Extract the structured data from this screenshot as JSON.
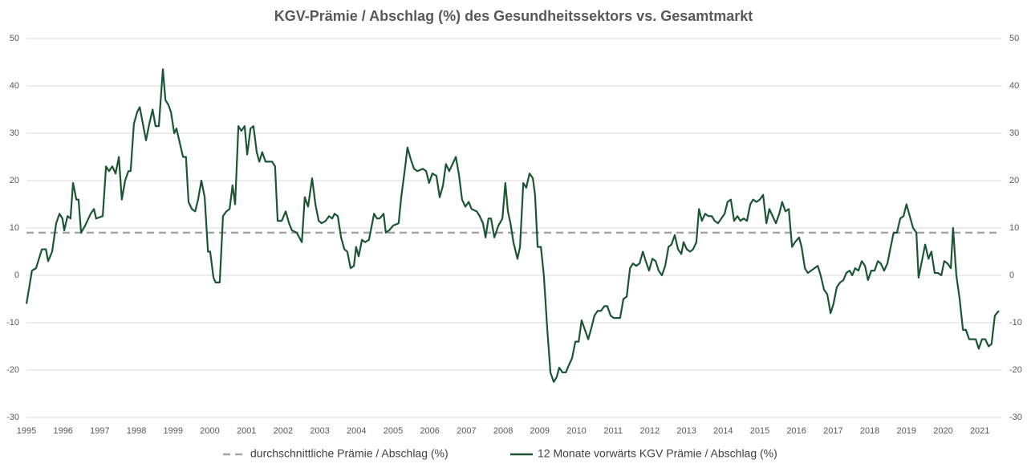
{
  "chart_data": {
    "type": "line",
    "title": "KGV-Prämie / Abschlag (%) des Gesundheitssektors vs. Gesamtmarkt",
    "xlim": [
      1995,
      2021.6
    ],
    "xticks": [
      1995,
      1996,
      1997,
      1998,
      1999,
      2000,
      2001,
      2002,
      2003,
      2004,
      2005,
      2006,
      2007,
      2008,
      2009,
      2010,
      2011,
      2012,
      2013,
      2014,
      2015,
      2016,
      2017,
      2018,
      2019,
      2020,
      2021
    ],
    "ylim": [
      -30,
      50
    ],
    "yticks": [
      -30,
      -20,
      -10,
      0,
      10,
      20,
      30,
      40,
      50
    ],
    "y2lim": [
      -30,
      50
    ],
    "y2ticks": [
      -30,
      -20,
      -10,
      0,
      10,
      20,
      30,
      40,
      50
    ],
    "grid": true,
    "legend": "bottom",
    "series": [
      {
        "name": "durchschnittliche Prämie / Abschlag (%)",
        "color": "#a6a6a6",
        "dash": true,
        "x": [
          1995,
          2021.52
        ],
        "values": [
          9,
          9
        ]
      },
      {
        "name": "12 Monate vorwärts KGV Prämie / Abschlag (%)",
        "color": "#1a5632",
        "dash": false,
        "x": [
          1995.0,
          1995.15,
          1995.26,
          1995.42,
          1995.53,
          1995.59,
          1995.7,
          1995.81,
          1995.9,
          1995.98,
          1996.03,
          1996.12,
          1996.2,
          1996.27,
          1996.36,
          1996.42,
          1996.49,
          1996.6,
          1996.75,
          1996.84,
          1996.9,
          1997.08,
          1997.17,
          1997.25,
          1997.34,
          1997.43,
          1997.52,
          1997.6,
          1997.69,
          1997.78,
          1997.84,
          1997.93,
          1998.02,
          1998.09,
          1998.15,
          1998.26,
          1998.35,
          1998.44,
          1998.52,
          1998.61,
          1998.72,
          1998.79,
          1998.87,
          1998.94,
          1999.03,
          1999.09,
          1999.18,
          1999.27,
          1999.35,
          1999.42,
          1999.51,
          1999.6,
          1999.68,
          1999.77,
          1999.86,
          1999.95,
          2000.01,
          2000.1,
          2000.16,
          2000.27,
          2000.36,
          2000.45,
          2000.54,
          2000.62,
          2000.69,
          2000.78,
          2000.86,
          2000.95,
          2001.02,
          2001.11,
          2001.19,
          2001.28,
          2001.35,
          2001.43,
          2001.52,
          2001.7,
          2001.78,
          2001.85,
          2001.96,
          2002.07,
          2002.16,
          2002.24,
          2002.37,
          2002.51,
          2002.59,
          2002.68,
          2002.79,
          2002.88,
          2002.97,
          2003.05,
          2003.16,
          2003.25,
          2003.34,
          2003.4,
          2003.49,
          2003.58,
          2003.67,
          2003.75,
          2003.84,
          2003.93,
          2003.99,
          2004.06,
          2004.15,
          2004.23,
          2004.34,
          2004.48,
          2004.56,
          2004.63,
          2004.74,
          2004.8,
          2004.89,
          2005.0,
          2005.15,
          2005.22,
          2005.33,
          2005.39,
          2005.48,
          2005.57,
          2005.66,
          2005.81,
          2005.9,
          2005.98,
          2006.07,
          2006.18,
          2006.27,
          2006.36,
          2006.44,
          2006.53,
          2006.62,
          2006.71,
          2006.79,
          2006.88,
          2006.97,
          2007.06,
          2007.14,
          2007.28,
          2007.36,
          2007.45,
          2007.52,
          2007.6,
          2007.67,
          2007.76,
          2007.87,
          2007.98,
          2008.06,
          2008.13,
          2008.2,
          2008.28,
          2008.39,
          2008.46,
          2008.55,
          2008.63,
          2008.72,
          2008.81,
          2008.87,
          2008.94,
          2009.03,
          2009.11,
          2009.2,
          2009.29,
          2009.38,
          2009.46,
          2009.53,
          2009.62,
          2009.71,
          2009.79,
          2009.88,
          2009.97,
          2010.06,
          2010.14,
          2010.23,
          2010.32,
          2010.41,
          2010.49,
          2010.58,
          2010.67,
          2010.76,
          2010.84,
          2010.93,
          2011.02,
          2011.19,
          2011.28,
          2011.37,
          2011.46,
          2011.54,
          2011.63,
          2011.72,
          2011.81,
          2011.89,
          2011.98,
          2012.07,
          2012.16,
          2012.24,
          2012.33,
          2012.42,
          2012.51,
          2012.59,
          2012.68,
          2012.77,
          2012.86,
          2012.92,
          2013.01,
          2013.1,
          2013.18,
          2013.27,
          2013.34,
          2013.42,
          2013.51,
          2013.6,
          2013.69,
          2013.77,
          2013.86,
          2013.95,
          2014.04,
          2014.12,
          2014.21,
          2014.3,
          2014.39,
          2014.47,
          2014.56,
          2014.65,
          2014.74,
          2014.82,
          2014.91,
          2015.0,
          2015.09,
          2015.18,
          2015.26,
          2015.35,
          2015.44,
          2015.53,
          2015.61,
          2015.7,
          2015.79,
          2015.88,
          2015.96,
          2016.07,
          2016.14,
          2016.23,
          2016.31,
          2016.4,
          2016.58,
          2016.66,
          2016.75,
          2016.84,
          2016.93,
          2017.01,
          2017.1,
          2017.19,
          2017.28,
          2017.36,
          2017.45,
          2017.52,
          2017.6,
          2017.69,
          2017.78,
          2017.87,
          2017.95,
          2018.04,
          2018.13,
          2018.22,
          2018.3,
          2018.39,
          2018.48,
          2018.57,
          2018.65,
          2018.74,
          2018.83,
          2018.92,
          2019.0,
          2019.09,
          2019.18,
          2019.27,
          2019.33,
          2019.42,
          2019.51,
          2019.6,
          2019.68,
          2019.77,
          2019.86,
          2019.95,
          2020.03,
          2020.12,
          2020.21,
          2020.27,
          2020.36,
          2020.45,
          2020.54,
          2020.62,
          2020.71,
          2020.8,
          2020.89,
          2020.97,
          2021.06,
          2021.15,
          2021.24,
          2021.32,
          2021.41,
          2021.52
        ],
        "values": [
          -6,
          1,
          1.5,
          5.5,
          5.5,
          3,
          5,
          11,
          13,
          12,
          9.5,
          12.5,
          12,
          19.5,
          16,
          16,
          9,
          10.5,
          13,
          14,
          12,
          12.5,
          23,
          22,
          23,
          21.5,
          25,
          16,
          20,
          22,
          22,
          32,
          34.5,
          35.5,
          33,
          28.5,
          32,
          35,
          31.5,
          31.5,
          43.5,
          37,
          36,
          34.5,
          30,
          31,
          28,
          25,
          25,
          15.5,
          14,
          13.5,
          16,
          20,
          16.5,
          5,
          5,
          -0.5,
          -1.5,
          -1.5,
          12.5,
          13.5,
          14,
          19,
          15,
          31.5,
          30.5,
          31.5,
          25.5,
          31,
          31.5,
          26,
          24,
          26,
          24,
          24,
          23,
          11.5,
          11.5,
          13.5,
          11,
          9.5,
          9,
          7,
          16.5,
          14.5,
          20.5,
          15,
          11.5,
          11,
          11.5,
          12.5,
          12,
          13,
          12.5,
          8,
          5.5,
          5,
          1.5,
          2,
          6,
          4,
          7.5,
          7,
          7.5,
          13,
          12,
          12,
          13,
          9,
          9.5,
          10.5,
          11,
          16.5,
          23,
          27,
          24.5,
          22.5,
          22,
          22.5,
          22,
          19.5,
          21.5,
          21,
          16.5,
          19,
          23.5,
          22,
          23.5,
          25,
          21.5,
          16,
          14.5,
          15.5,
          14,
          13.5,
          12.5,
          11,
          8,
          12,
          12,
          8,
          10.5,
          12,
          19.5,
          13.5,
          11,
          7,
          3.5,
          6,
          19.5,
          18.5,
          21.5,
          20.5,
          17,
          6,
          6,
          0,
          -11,
          -20.5,
          -22.5,
          -21.5,
          -19.5,
          -20.5,
          -20.5,
          -19,
          -17.5,
          -14,
          -14,
          -9.5,
          -11.5,
          -13.5,
          -11,
          -8.5,
          -7.5,
          -7.5,
          -6.5,
          -6.5,
          -8.5,
          -9,
          -9,
          -5,
          -4.5,
          1.5,
          2.5,
          2,
          2.5,
          5,
          3,
          1,
          3.5,
          3,
          1,
          0,
          2,
          6,
          6.5,
          8.5,
          5.5,
          4.5,
          7,
          5.5,
          5,
          5.5,
          7,
          14,
          11.5,
          13,
          12.5,
          12.5,
          11.5,
          11,
          12,
          13,
          15.5,
          16,
          11.5,
          12.5,
          11.5,
          12,
          11.5,
          15,
          16,
          15.5,
          16,
          17,
          11,
          14,
          12.5,
          11,
          13,
          15.5,
          13.5,
          14,
          6,
          7,
          8,
          6,
          1.5,
          0.5,
          1,
          2,
          0,
          -3,
          -4,
          -8,
          -6,
          -2.5,
          -1.5,
          -1,
          0.5,
          1,
          0,
          1.5,
          1,
          3,
          2,
          -1,
          1,
          1,
          3,
          2.5,
          1,
          2.5,
          6,
          9,
          9,
          12,
          12.5,
          15,
          12.5,
          10,
          9,
          -0.5,
          3,
          6.5,
          3.5,
          5,
          0.5,
          0.5,
          0,
          3,
          2.5,
          1.5,
          10,
          0,
          -5,
          -11.5,
          -11.5,
          -13.5,
          -13.5,
          -13.5,
          -15.5,
          -13.5,
          -13.5,
          -15,
          -14.5,
          -8.5,
          -7.5
        ]
      }
    ]
  }
}
